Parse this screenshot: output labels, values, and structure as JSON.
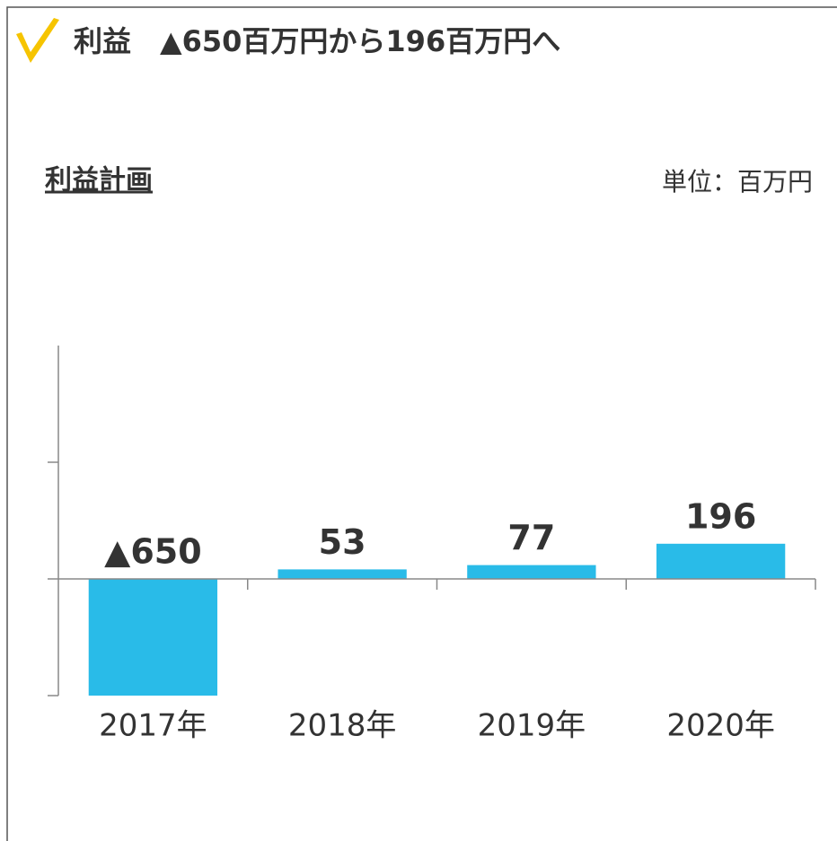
{
  "chart_data": {
    "type": "bar",
    "title": "利益　▲650百万円から196百万円へ",
    "subtitle": "利益計画",
    "unit_label": "単位：百万円",
    "categories": [
      "2017年",
      "2018年",
      "2019年",
      "2020年"
    ],
    "values": [
      -650,
      53,
      77,
      196
    ],
    "value_labels": [
      "▲650",
      "53",
      "77",
      "196"
    ],
    "color": "#29bbe8",
    "ylim": [
      -650,
      1300
    ],
    "yticks": [
      -650,
      0,
      650
    ]
  }
}
